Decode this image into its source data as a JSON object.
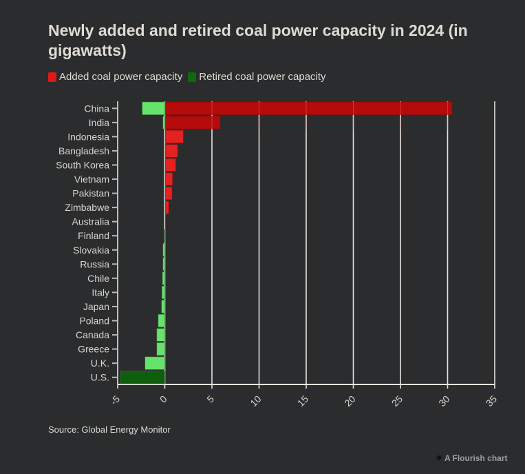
{
  "chart_data": {
    "type": "bar",
    "orientation": "horizontal",
    "title": "Newly added and retired coal power capacity in 2024 (in gigawatts)",
    "categories": [
      "China",
      "India",
      "Indonesia",
      "Bangladesh",
      "South Korea",
      "Vietnam",
      "Pakistan",
      "Zimbabwe",
      "Australia",
      "Finland",
      "Slovakia",
      "Russia",
      "Chile",
      "Italy",
      "Japan",
      "Poland",
      "Canada",
      "Greece",
      "U.K.",
      "U.S."
    ],
    "series": [
      {
        "name": "Added coal power capacity",
        "color": "#e52222",
        "values": [
          30.4,
          5.8,
          1.9,
          1.3,
          1.1,
          0.75,
          0.7,
          0.35,
          0.05,
          0,
          0,
          0,
          0,
          0,
          0,
          0,
          0,
          0,
          0,
          0
        ]
      },
      {
        "name": "Retired coal power capacity",
        "color": "#66e36b",
        "values": [
          -2.4,
          -0.2,
          0,
          0,
          0,
          0,
          0,
          0,
          0,
          -0.05,
          -0.2,
          -0.2,
          -0.25,
          -0.3,
          -0.35,
          -0.7,
          -0.85,
          -0.85,
          -2.1,
          -4.7
        ]
      }
    ],
    "highlight_colors": {
      "added_dark": "#b50b0b",
      "retired_dark": "#0d5e0d"
    },
    "xlim": [
      -5,
      35
    ],
    "xticks": [
      -5,
      0,
      5,
      10,
      15,
      20,
      25,
      30,
      35
    ],
    "grid": true,
    "legend_position": "top-left"
  },
  "title": "Newly added and retired coal power capacity in 2024 (in gigawatts)",
  "legend": {
    "added": "Added coal power capacity",
    "retired": "Retired coal power capacity"
  },
  "source": "Source: Global Energy Monitor",
  "credit": "A Flourish chart"
}
